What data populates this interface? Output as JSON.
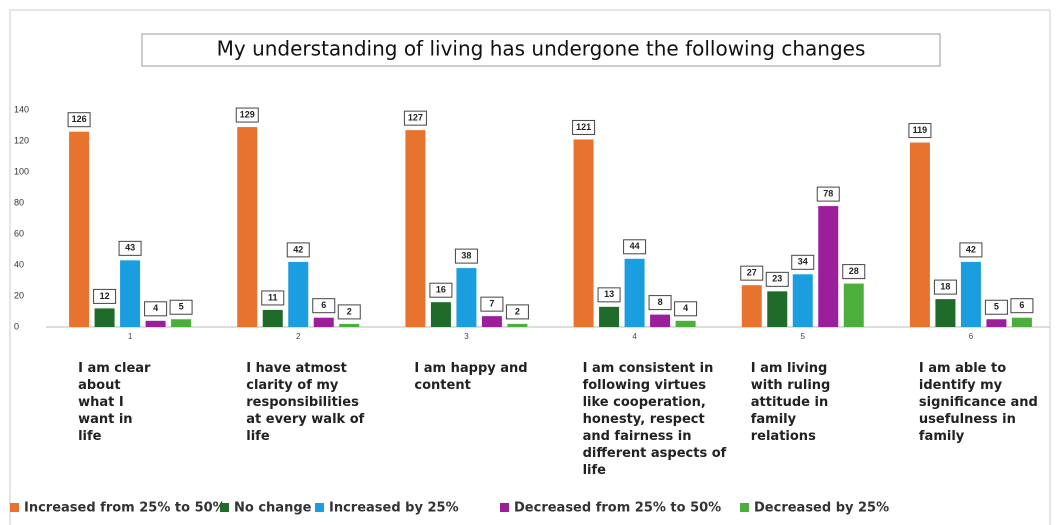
{
  "chart_data": {
    "type": "bar",
    "title": "My understanding of living has undergone the following changes",
    "categories": [
      "1",
      "2",
      "3",
      "4",
      "5",
      "6"
    ],
    "descriptions": [
      "I am clear about what I want in life",
      "I have atmost clarity of my responsibilities at every walk of life",
      "I am happy and content",
      "I am consistent in following virtues like cooperation, honesty, respect and fairness in different aspects of life",
      "I am living with ruling attitude in family relations",
      "I am able to identify my significance and usefulness in family"
    ],
    "series": [
      {
        "name": "Increased from 25% to 50%",
        "color": "#e8732e",
        "values": [
          126,
          129,
          127,
          121,
          27,
          119
        ]
      },
      {
        "name": "No change",
        "color": "#1e6b2a",
        "values": [
          12,
          11,
          16,
          13,
          23,
          18
        ]
      },
      {
        "name": "Increased by 25%",
        "color": "#1b9ee0",
        "values": [
          43,
          42,
          38,
          44,
          34,
          42
        ]
      },
      {
        "name": "Decreased from 25% to 50%",
        "color": "#9b1f9b",
        "values": [
          4,
          6,
          7,
          8,
          78,
          5
        ]
      },
      {
        "name": "Decreased by 25%",
        "color": "#4caf3c",
        "values": [
          5,
          2,
          2,
          4,
          28,
          6
        ]
      }
    ],
    "ylim": [
      0,
      140
    ],
    "yticks": [
      0,
      20,
      40,
      60,
      80,
      100,
      120,
      140
    ],
    "grid": false,
    "legend": "bottom"
  }
}
